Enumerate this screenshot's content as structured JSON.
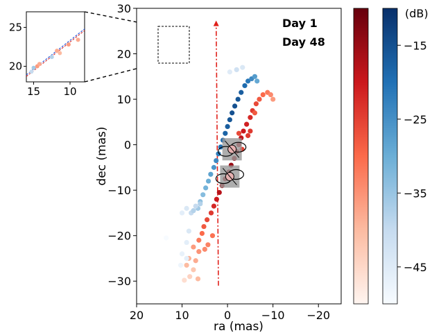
{
  "chart_data": {
    "type": "scatter",
    "xlabel": "ra (mas)",
    "ylabel": "dec (mas)",
    "xlim": [
      20,
      -25
    ],
    "ylim": [
      -35,
      30
    ],
    "xticks": [
      "20",
      "10",
      "0",
      "−10",
      "−20"
    ],
    "yticks": [
      "30",
      "20",
      "10",
      "0",
      "−10",
      "−20",
      "−30"
    ],
    "grid": false,
    "legend": [
      {
        "label": "Day 1",
        "color": "#ff1010"
      },
      {
        "label": "Day 48",
        "color": "#0a18ff"
      }
    ],
    "series": [
      {
        "name": "Day 1",
        "colormap": "Reds",
        "description_points": [
          [
            6.5,
            -29.5,
            -40
          ],
          [
            7.5,
            -27.5,
            -42
          ],
          [
            8.3,
            -29,
            -44
          ],
          [
            9.5,
            -29.8,
            -46
          ],
          [
            9,
            -26.5,
            -40
          ],
          [
            7,
            -25.5,
            -38
          ],
          [
            8.5,
            -25,
            -39
          ],
          [
            6.3,
            -23.5,
            -35
          ],
          [
            7.5,
            -22.5,
            -36
          ],
          [
            6.3,
            -21,
            -32
          ],
          [
            5.6,
            -19.5,
            -30
          ],
          [
            5.2,
            -18,
            -28
          ],
          [
            4.5,
            -16.5,
            -26
          ],
          [
            3.6,
            -15,
            -24
          ],
          [
            3,
            -13.5,
            -22
          ],
          [
            2.4,
            -12,
            -20
          ],
          [
            1.8,
            -10.5,
            -18
          ],
          [
            1.2,
            -9,
            -17
          ],
          [
            0.5,
            -7.5,
            -16
          ],
          [
            -0.3,
            -6,
            -15
          ],
          [
            -0.8,
            -4.5,
            -15
          ],
          [
            -1.5,
            -3,
            -16
          ],
          [
            -2,
            -1.5,
            -17
          ],
          [
            -2.5,
            0,
            -18
          ],
          [
            -3,
            1.5,
            -19
          ],
          [
            -3.5,
            3,
            -20
          ],
          [
            -4.2,
            4.5,
            -21
          ],
          [
            -5,
            6,
            -22
          ],
          [
            -5.5,
            7.5,
            -24
          ],
          [
            -6.3,
            9,
            -26
          ],
          [
            -7,
            10,
            -28
          ],
          [
            -7.8,
            11,
            -30
          ],
          [
            -8.8,
            11.5,
            -32
          ],
          [
            -9.5,
            11,
            -34
          ],
          [
            -10,
            10,
            -36
          ],
          [
            -5,
            3,
            -24
          ],
          [
            -4.5,
            2,
            -24
          ],
          [
            -3.2,
            -1,
            -25
          ],
          [
            -6,
            7,
            -28
          ],
          [
            -2.5,
            2.5,
            -26
          ],
          [
            4.3,
            -22,
            -33
          ],
          [
            5,
            -23,
            -34
          ],
          [
            3.3,
            -20,
            -31
          ]
        ]
      },
      {
        "name": "Day 48",
        "colormap": "Blues",
        "description_points": [
          [
            13.5,
            -20.5,
            -50
          ],
          [
            9,
            -14,
            -44
          ],
          [
            10,
            -15,
            -46
          ],
          [
            8.5,
            -19,
            -44
          ],
          [
            9,
            -21.5,
            -46
          ],
          [
            10,
            -24,
            -47
          ],
          [
            10.3,
            -26.5,
            -48
          ],
          [
            9,
            -25,
            -46
          ],
          [
            8,
            -15,
            -40
          ],
          [
            7.5,
            -14.5,
            -38
          ],
          [
            6.5,
            -14,
            -36
          ],
          [
            6,
            -12.5,
            -34
          ],
          [
            5.4,
            -11,
            -33
          ],
          [
            4.8,
            -9.5,
            -31
          ],
          [
            4.2,
            -8,
            -30
          ],
          [
            3.7,
            -6.5,
            -28
          ],
          [
            3,
            -5,
            -26
          ],
          [
            2.5,
            -3.5,
            -24
          ],
          [
            2,
            -2,
            -22
          ],
          [
            1.5,
            -0.5,
            -20
          ],
          [
            1,
            1,
            -19
          ],
          [
            0.5,
            2.5,
            -18
          ],
          [
            0,
            4,
            -17
          ],
          [
            -0.5,
            5.5,
            -16
          ],
          [
            -1,
            7,
            -15
          ],
          [
            -1.6,
            8.5,
            -15
          ],
          [
            -2.3,
            10,
            -16
          ],
          [
            -3,
            11.5,
            -17
          ],
          [
            -3.8,
            13,
            -19
          ],
          [
            -4.5,
            14,
            -21
          ],
          [
            -5.3,
            14.5,
            -24
          ],
          [
            -6,
            15,
            -27
          ],
          [
            -6.5,
            14,
            -29
          ],
          [
            -2,
            16.5,
            -42
          ],
          [
            -0.5,
            16,
            -45
          ],
          [
            -3.3,
            17,
            -44
          ],
          [
            6,
            -13,
            -38
          ],
          [
            7,
            -13.5,
            -40
          ]
        ]
      }
    ],
    "trajectory": {
      "label": "",
      "color": "#e0201a",
      "from": [
        2,
        -31
      ],
      "to": [
        2.5,
        27
      ]
    },
    "colorbars": [
      {
        "cmap": "Reds",
        "range_db": [
          -50,
          -10
        ]
      },
      {
        "cmap": "Blues",
        "range_db": [
          -50,
          -10
        ],
        "unit_label": "(dB)",
        "ticks": [
          "−15",
          "−25",
          "−35",
          "−45"
        ]
      }
    ],
    "inset": {
      "xlim": [
        16,
        8
      ],
      "ylim": [
        18,
        27
      ],
      "xticks": [
        "15",
        "10"
      ],
      "yticks": [
        "25",
        "20"
      ],
      "zoom_box_ra": [
        15,
        8
      ],
      "zoom_box_dec": [
        18,
        26
      ]
    }
  }
}
